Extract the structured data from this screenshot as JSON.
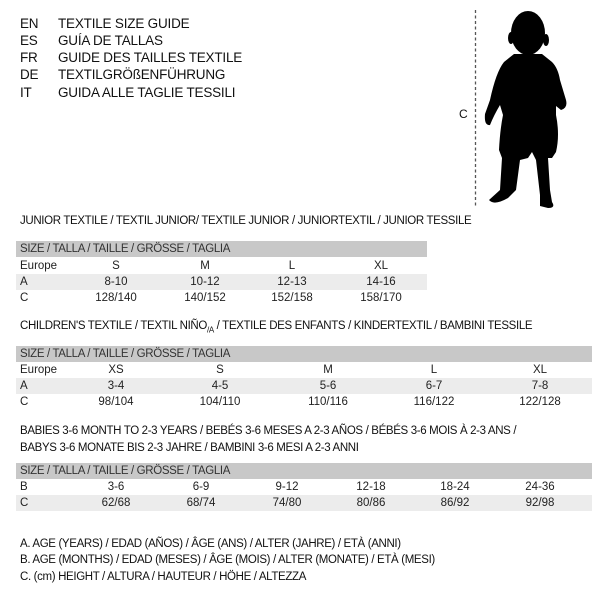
{
  "languages": [
    {
      "code": "EN",
      "title": "TEXTILE SIZE GUIDE"
    },
    {
      "code": "ES",
      "title": "GUÍA DE TALLAS"
    },
    {
      "code": "FR",
      "title": "GUIDE DES TAILLES TEXTILE"
    },
    {
      "code": "DE",
      "title": "TEXTILGRÖßENFÜHRUNG"
    },
    {
      "code": "IT",
      "title": "GUIDA ALLE TAGLIE TESSILI"
    }
  ],
  "figure": {
    "label": "C"
  },
  "junior": {
    "title": "JUNIOR TEXTILE / TEXTIL JUNIOR/ TEXTILE JUNIOR / JUNIORTEXTIL / JUNIOR TESSILE",
    "header": "SIZE / TALLA / TAILLE / GRÖSSE / TAGLIA",
    "rows": [
      {
        "label": "Europe",
        "values": [
          "S",
          "M",
          "L",
          "XL"
        ]
      },
      {
        "label": "A",
        "values": [
          "8-10",
          "10-12",
          "12-13",
          "14-16"
        ]
      },
      {
        "label": "C",
        "values": [
          "128/140",
          "140/152",
          "152/158",
          "158/170"
        ]
      }
    ]
  },
  "children": {
    "title": "CHILDREN'S TEXTILE / TEXTIL NIÑO",
    "title_sub": "/A",
    "title_rest": " / TEXTILE DES ENFANTS / KINDERTEXTIL / BAMBINI TESSILE",
    "header": "SIZE / TALLA / TAILLE / GRÖSSE / TAGLIA",
    "rows": [
      {
        "label": "Europe",
        "values": [
          "XS",
          "S",
          "M",
          "L",
          "XL"
        ]
      },
      {
        "label": "A",
        "values": [
          "3-4",
          "4-5",
          "5-6",
          "6-7",
          "7-8"
        ]
      },
      {
        "label": "C",
        "values": [
          "98/104",
          "104/110",
          "110/116",
          "116/122",
          "122/128"
        ]
      }
    ]
  },
  "babies": {
    "title_line1": "BABIES 3-6 MONTH TO 2-3 YEARS / BEBÉS 3-6 MESES A 2-3 AÑOS / BÉBÉS 3-6 MOIS À 2-3 ANS /",
    "title_line2": "BABYS 3-6 MONATE BIS 2-3 JAHRE / BAMBINI 3-6 MESI A 2-3 ANNI",
    "header": "SIZE / TALLA / TAILLE / GRÖSSE / TAGLIA",
    "rows": [
      {
        "label": "B",
        "values": [
          "3-6",
          "6-9",
          "9-12",
          "12-18",
          "18-24",
          "24-36"
        ]
      },
      {
        "label": "C",
        "values": [
          "62/68",
          "68/74",
          "74/80",
          "80/86",
          "86/92",
          "92/98"
        ]
      }
    ]
  },
  "legend": [
    "A. AGE (YEARS) / EDAD (AÑOS) / ÂGE (ANS) / ALTER (JAHRE) / ETÀ (ANNI)",
    "B. AGE (MONTHS) / EDAD (MESES) / ÂGE (MOIS) / ALTER (MONATE) / ETÀ (MESI)",
    "C. (cm) HEIGHT / ALTURA / HAUTEUR / HÖHE / ALTEZZA"
  ]
}
